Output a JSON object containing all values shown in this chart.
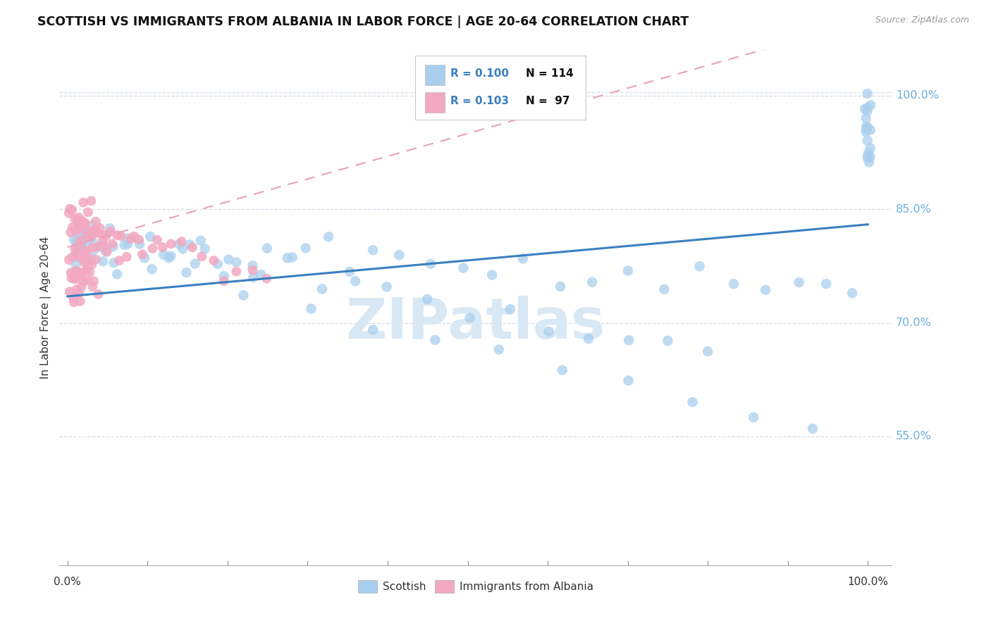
{
  "title": "SCOTTISH VS IMMIGRANTS FROM ALBANIA IN LABOR FORCE | AGE 20-64 CORRELATION CHART",
  "source": "Source: ZipAtlas.com",
  "ylabel": "In Labor Force | Age 20-64",
  "scottish_color": "#aacfee",
  "albania_color": "#f2a8c0",
  "trendline_scottish_color": "#3a7fc1",
  "trendline_albania_color": "#e8a0b8",
  "grid_color": "#d0dde8",
  "ytick_color": "#6ab0e0",
  "xtick_color": "#333333",
  "ylabel_color": "#333333",
  "title_color": "#111111",
  "source_color": "#999999",
  "watermark_color": "#d8e8f4",
  "legend_text_color": "#3a7fc1",
  "legend_n_color": "#111111",
  "xlim": [
    -0.01,
    1.03
  ],
  "ylim": [
    0.38,
    1.06
  ],
  "yticks": [
    0.55,
    0.7,
    0.85,
    1.0
  ],
  "ytick_labels": [
    "55.0%",
    "70.0%",
    "85.0%",
    "100.0%"
  ],
  "trend_scottish": [
    0.735,
    0.83
  ],
  "trend_albania": [
    0.8,
    1.1
  ],
  "scottish_x": [
    0.008,
    0.009,
    0.01,
    0.011,
    0.012,
    0.013,
    0.014,
    0.015,
    0.016,
    0.017,
    0.018,
    0.019,
    0.02,
    0.022,
    0.024,
    0.026,
    0.028,
    0.03,
    0.033,
    0.036,
    0.04,
    0.044,
    0.048,
    0.053,
    0.058,
    0.065,
    0.072,
    0.08,
    0.088,
    0.097,
    0.107,
    0.118,
    0.13,
    0.143,
    0.157,
    0.173,
    0.19,
    0.208,
    0.228,
    0.25,
    0.273,
    0.298,
    0.325,
    0.354,
    0.385,
    0.418,
    0.453,
    0.49,
    0.53,
    0.57,
    0.612,
    0.655,
    0.7,
    0.745,
    0.79,
    0.833,
    0.875,
    0.913,
    0.948,
    0.978,
    1.0,
    1.0,
    1.0,
    1.0,
    1.0,
    1.0,
    1.0,
    1.0,
    1.0,
    1.0,
    1.0,
    1.0,
    1.0,
    1.0,
    1.0,
    1.0,
    1.0,
    1.0,
    0.14,
    0.17,
    0.2,
    0.24,
    0.28,
    0.32,
    0.36,
    0.4,
    0.45,
    0.5,
    0.55,
    0.6,
    0.65,
    0.7,
    0.75,
    0.8,
    0.15,
    0.22,
    0.3,
    0.38,
    0.46,
    0.54,
    0.62,
    0.7,
    0.78,
    0.86,
    0.93,
    0.03,
    0.05,
    0.075,
    0.1,
    0.13,
    0.16,
    0.195,
    0.23
  ],
  "scottish_y": [
    0.8,
    0.82,
    0.79,
    0.81,
    0.78,
    0.8,
    0.82,
    0.79,
    0.81,
    0.78,
    0.8,
    0.82,
    0.81,
    0.79,
    0.78,
    0.8,
    0.81,
    0.79,
    0.8,
    0.81,
    0.8,
    0.79,
    0.81,
    0.8,
    0.79,
    0.78,
    0.8,
    0.81,
    0.8,
    0.79,
    0.78,
    0.8,
    0.79,
    0.8,
    0.81,
    0.8,
    0.79,
    0.78,
    0.79,
    0.8,
    0.78,
    0.79,
    0.8,
    0.78,
    0.79,
    0.78,
    0.77,
    0.78,
    0.76,
    0.77,
    0.76,
    0.75,
    0.76,
    0.75,
    0.77,
    0.76,
    0.75,
    0.76,
    0.75,
    0.74,
    0.995,
    0.99,
    0.985,
    0.98,
    0.975,
    0.97,
    0.965,
    0.96,
    0.955,
    0.95,
    0.945,
    0.94,
    0.935,
    0.93,
    0.925,
    0.92,
    0.915,
    0.91,
    0.81,
    0.8,
    0.79,
    0.78,
    0.77,
    0.76,
    0.75,
    0.74,
    0.73,
    0.72,
    0.71,
    0.7,
    0.69,
    0.68,
    0.67,
    0.66,
    0.76,
    0.74,
    0.72,
    0.7,
    0.68,
    0.66,
    0.64,
    0.62,
    0.6,
    0.58,
    0.56,
    0.83,
    0.82,
    0.81,
    0.8,
    0.79,
    0.78,
    0.77,
    0.76
  ],
  "albania_x": [
    0.002,
    0.003,
    0.004,
    0.005,
    0.006,
    0.007,
    0.008,
    0.009,
    0.01,
    0.011,
    0.012,
    0.013,
    0.014,
    0.015,
    0.016,
    0.017,
    0.018,
    0.019,
    0.02,
    0.021,
    0.022,
    0.023,
    0.024,
    0.025,
    0.026,
    0.027,
    0.028,
    0.029,
    0.03,
    0.031,
    0.032,
    0.033,
    0.034,
    0.035,
    0.036,
    0.037,
    0.038,
    0.04,
    0.042,
    0.044,
    0.046,
    0.048,
    0.05,
    0.053,
    0.056,
    0.06,
    0.064,
    0.068,
    0.073,
    0.078,
    0.084,
    0.09,
    0.097,
    0.105,
    0.113,
    0.122,
    0.132,
    0.143,
    0.155,
    0.168,
    0.182,
    0.197,
    0.213,
    0.23,
    0.248,
    0.002,
    0.003,
    0.004,
    0.005,
    0.006,
    0.007,
    0.008,
    0.009,
    0.01,
    0.011,
    0.012,
    0.013,
    0.014,
    0.015,
    0.016,
    0.017,
    0.018,
    0.019,
    0.02,
    0.021,
    0.022,
    0.023,
    0.024,
    0.025,
    0.026,
    0.027,
    0.028,
    0.029,
    0.03,
    0.032,
    0.035,
    0.04
  ],
  "albania_y": [
    0.86,
    0.84,
    0.82,
    0.8,
    0.84,
    0.82,
    0.8,
    0.84,
    0.82,
    0.84,
    0.8,
    0.82,
    0.84,
    0.8,
    0.82,
    0.84,
    0.86,
    0.82,
    0.84,
    0.8,
    0.82,
    0.84,
    0.8,
    0.82,
    0.84,
    0.8,
    0.82,
    0.84,
    0.8,
    0.82,
    0.84,
    0.8,
    0.82,
    0.84,
    0.8,
    0.82,
    0.84,
    0.82,
    0.8,
    0.82,
    0.8,
    0.82,
    0.8,
    0.82,
    0.8,
    0.82,
    0.8,
    0.81,
    0.8,
    0.81,
    0.8,
    0.81,
    0.8,
    0.81,
    0.8,
    0.8,
    0.8,
    0.8,
    0.8,
    0.79,
    0.79,
    0.78,
    0.78,
    0.77,
    0.76,
    0.78,
    0.76,
    0.74,
    0.76,
    0.74,
    0.76,
    0.74,
    0.76,
    0.76,
    0.74,
    0.78,
    0.76,
    0.74,
    0.76,
    0.74,
    0.76,
    0.78,
    0.76,
    0.78,
    0.76,
    0.78,
    0.76,
    0.78,
    0.76,
    0.78,
    0.76,
    0.78,
    0.76,
    0.78,
    0.76,
    0.78,
    0.76
  ]
}
